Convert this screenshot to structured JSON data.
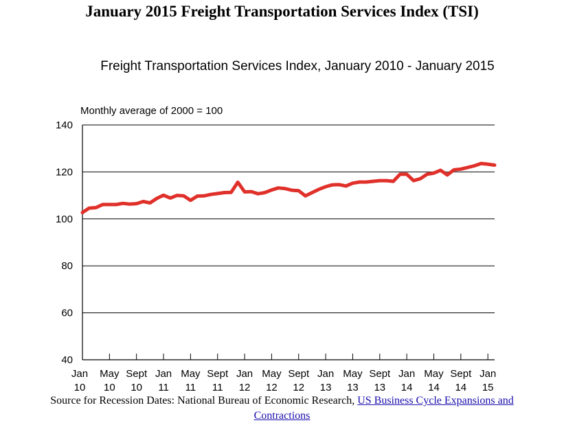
{
  "page": {
    "title": "January 2015 Freight Transportation Services Index (TSI)"
  },
  "chart_data": {
    "type": "line",
    "title": "Freight Transportation Services Index, January 2010 - January 2015",
    "unit_label": "Monthly average of 2000 = 100",
    "xlabel": "",
    "ylabel": "",
    "ylim": [
      40,
      140
    ],
    "yticks": [
      40,
      60,
      80,
      100,
      120,
      140
    ],
    "grid": true,
    "legend": "none",
    "line_color": "#e0302a",
    "x_tick_labels": [
      {
        "month": "Jan",
        "year": "10"
      },
      {
        "month": "May",
        "year": "10"
      },
      {
        "month": "Sept",
        "year": "10"
      },
      {
        "month": "Jan",
        "year": "11"
      },
      {
        "month": "May",
        "year": "11"
      },
      {
        "month": "Sept",
        "year": "11"
      },
      {
        "month": "Jan",
        "year": "12"
      },
      {
        "month": "May",
        "year": "12"
      },
      {
        "month": "Sept",
        "year": "12"
      },
      {
        "month": "Jan",
        "year": "13"
      },
      {
        "month": "May",
        "year": "13"
      },
      {
        "month": "Sept",
        "year": "13"
      },
      {
        "month": "Jan",
        "year": "14"
      },
      {
        "month": "May",
        "year": "14"
      },
      {
        "month": "Sept",
        "year": "14"
      },
      {
        "month": "Jan",
        "year": "15"
      }
    ],
    "x_start": "2010-01",
    "x_end": "2015-01",
    "series": [
      {
        "values": [
          102.7,
          104.6,
          104.8,
          106.1,
          106.1,
          106.1,
          106.6,
          106.3,
          106.5,
          107.4,
          106.8,
          108.7,
          110.1,
          108.9,
          110.0,
          109.8,
          107.9,
          109.7,
          109.8,
          110.4,
          110.8,
          111.2,
          111.3,
          115.6,
          111.5,
          111.6,
          110.7,
          111.2,
          112.3,
          113.2,
          112.9,
          112.2,
          112.0,
          109.8,
          111.2,
          112.6,
          113.7,
          114.5,
          114.6,
          114.0,
          115.2,
          115.7,
          115.7,
          116.0,
          116.3,
          116.3,
          116.0,
          119.0,
          119.0,
          116.3,
          117.1,
          119.0,
          119.5,
          120.7,
          118.7,
          120.9,
          121.2,
          121.9,
          122.6,
          123.6,
          123.3,
          122.9
        ]
      }
    ]
  },
  "source": {
    "prefix": "Source for Recession Dates: National Bureau of Economic Research,",
    "link_text_1": "US Business Cycle Expansions and",
    "link_text_2": "Contractions"
  }
}
